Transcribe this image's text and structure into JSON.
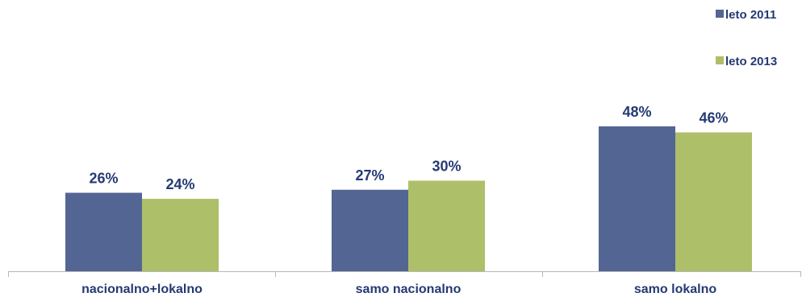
{
  "chart_data": {
    "type": "bar",
    "categories": [
      "nacionalno+lokalno",
      "samo nacionalno",
      "samo lokalno"
    ],
    "series": [
      {
        "name": "leto 2011",
        "values": [
          26,
          27,
          48
        ],
        "color": "#536593"
      },
      {
        "name": "leto 2013",
        "values": [
          24,
          30,
          46
        ],
        "color": "#aebf6a"
      }
    ],
    "value_suffix": "%",
    "ylim": [
      0,
      100
    ],
    "grid": false,
    "legend_position": "top-right",
    "label_color": "#243a73",
    "axis_color": "#b7b7b7"
  }
}
